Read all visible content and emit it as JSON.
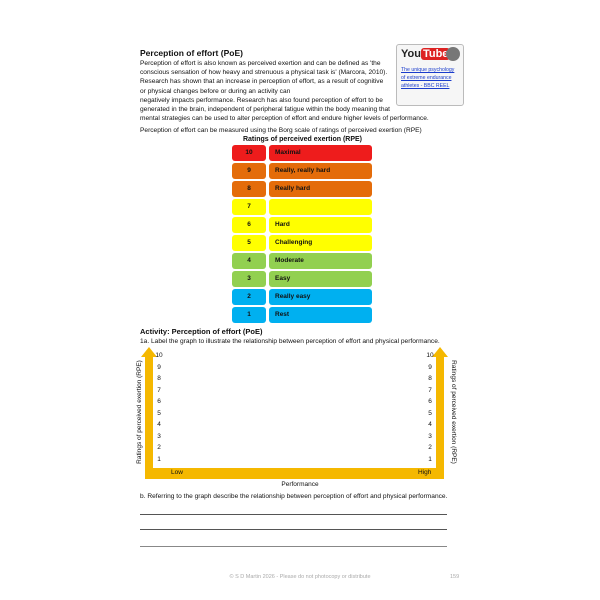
{
  "section": {
    "title": "Perception of effort (PoE)",
    "intro_p1": "Perception of effort is also known as perceived exertion and can be defined as 'the conscious sensation of how heavy and strenuous a physical task is' (Marcora, 2010). Research has shown that an increase in perception of effort, as a result of cognitive or physical changes before or during an activity can",
    "intro_p2": "negatively impacts performance. Research has also found perception of effort to be generated in the brain, independent of peripheral fatigue within the body meaning that mental strategies can be used to alter perception of effort and endure higher levels of performance.",
    "borg": "Perception of effort can be measured using the Borg scale of ratings of perceived exertion (RPE)"
  },
  "video": {
    "logo_you": "You",
    "logo_tube": "Tube",
    "link": "The unique psychology of extreme endurance athletes - BBC REEL",
    "icon": "film-reel-icon"
  },
  "rpe": {
    "title": "Ratings of perceived exertion (RPE)",
    "rows": [
      {
        "n": "10",
        "label": "Maximal",
        "color": "#ee1c1c"
      },
      {
        "n": "9",
        "label": "Really, really hard",
        "color": "#e46c0a"
      },
      {
        "n": "8",
        "label": "Really hard",
        "color": "#e46c0a"
      },
      {
        "n": "7",
        "label": "",
        "color": "#ffff00"
      },
      {
        "n": "6",
        "label": "Hard",
        "color": "#ffff00"
      },
      {
        "n": "5",
        "label": "Challenging",
        "color": "#ffff00"
      },
      {
        "n": "4",
        "label": "Moderate",
        "color": "#92d050"
      },
      {
        "n": "3",
        "label": "Easy",
        "color": "#92d050"
      },
      {
        "n": "2",
        "label": "Really easy",
        "color": "#00b0f0"
      },
      {
        "n": "1",
        "label": "Rest",
        "color": "#00b0f0"
      }
    ]
  },
  "activity": {
    "title": "Activity: Perception of effort (PoE)",
    "q1a": "1a. Label the graph to illustrate the relationship between perception of effort and physical performance.",
    "graph": {
      "y_label": "Ratings of perceived exertion (RPE)",
      "x_label": "Performance",
      "low": "Low",
      "high": "High",
      "ticks": [
        "10",
        "9",
        "8",
        "7",
        "6",
        "5",
        "4",
        "3",
        "2",
        "1"
      ],
      "axis_color": "#f5b800"
    },
    "qb": "b. Referring to the graph describe the relationship between perception of effort and physical performance."
  },
  "footer": {
    "text": "© S D Martin 2026 - Please do not photocopy or distribute",
    "page": "159"
  }
}
